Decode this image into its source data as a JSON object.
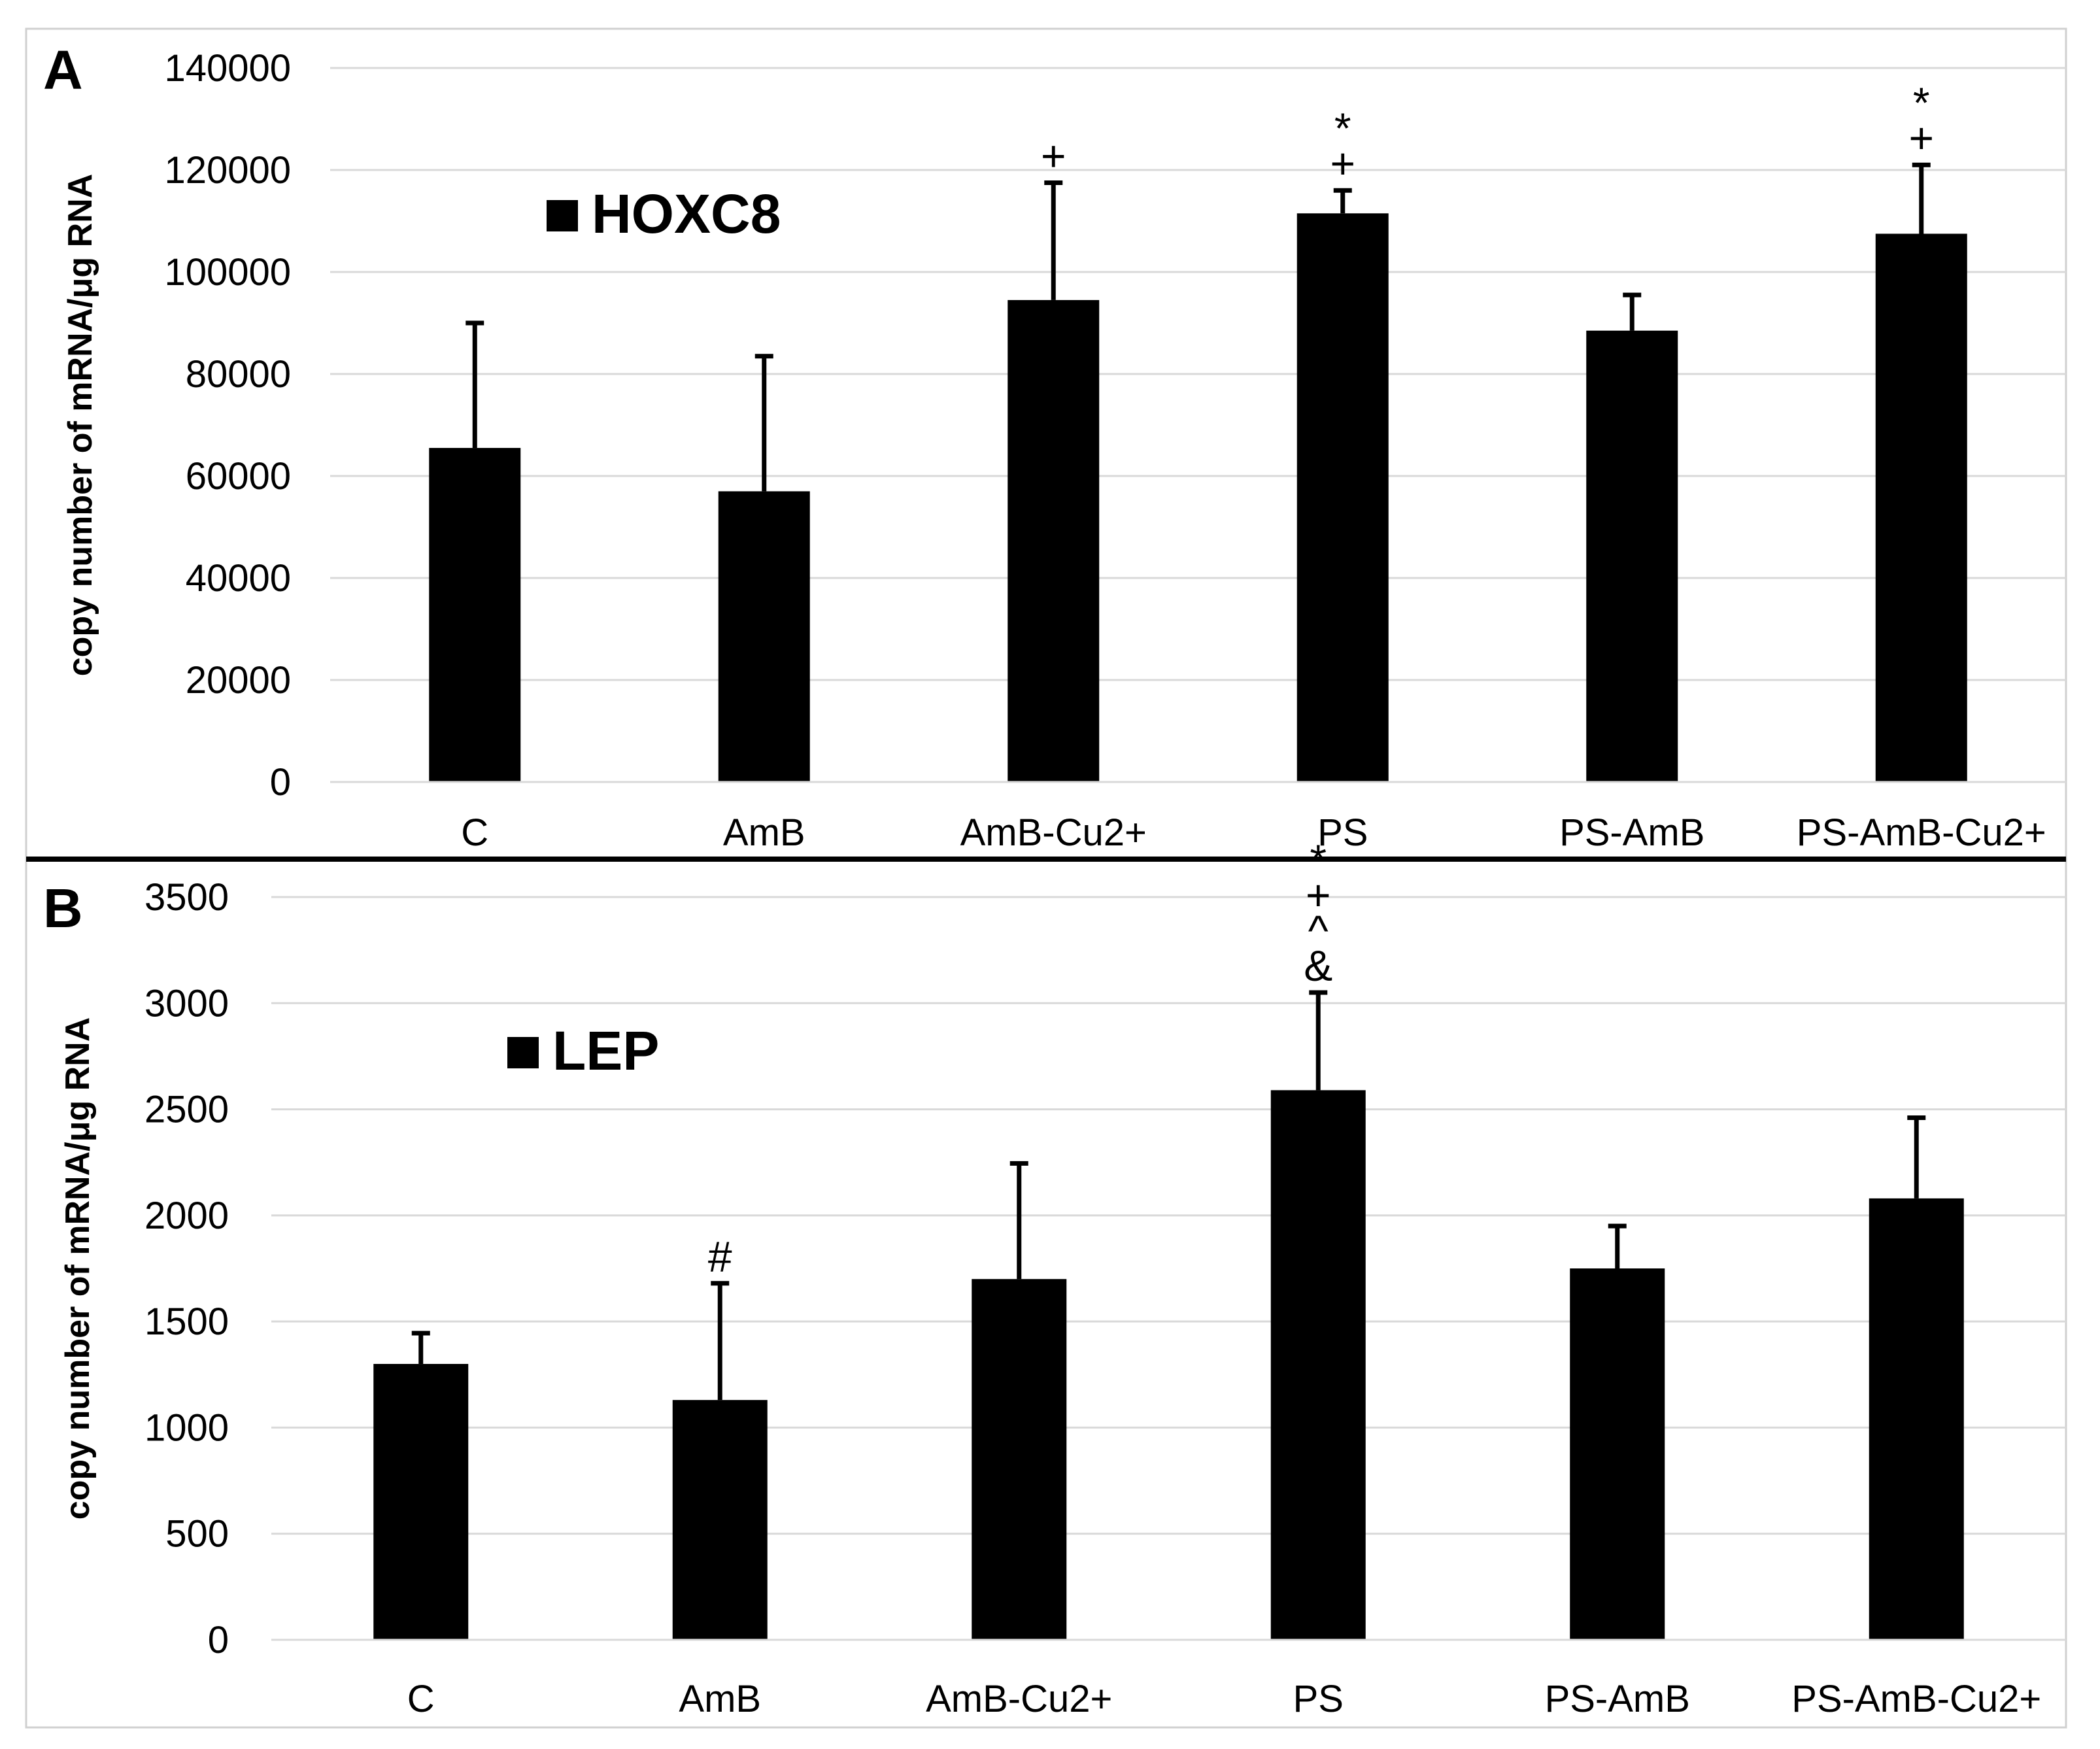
{
  "chart_data": [
    {
      "type": "bar",
      "panel_label": "A",
      "legend": "HOXC8",
      "legend_color": "#000000",
      "legend_placement": "top-left",
      "ylabel": "copy number of mRNA/μg RNA",
      "xlabel": "",
      "categories": [
        "C",
        "AmB",
        "AmB-Cu2+",
        "PS",
        "PS-AmB",
        "PS-AmB-Cu2+"
      ],
      "values": [
        65500,
        57000,
        94500,
        111500,
        88500,
        107500
      ],
      "errors": [
        24500,
        26500,
        23000,
        4500,
        7000,
        13500
      ],
      "annotations": [
        "",
        "",
        "+",
        "*\n+",
        "",
        "*\n+"
      ],
      "ylim": [
        0,
        140000
      ],
      "yticks": [
        0,
        20000,
        40000,
        60000,
        80000,
        100000,
        120000,
        140000
      ],
      "ytick_labels": [
        "0",
        "20000",
        "40000",
        "60000",
        "80000",
        "100000",
        "120000",
        "140000"
      ],
      "grid": true
    },
    {
      "type": "bar",
      "panel_label": "B",
      "legend": "LEP",
      "legend_color": "#000000",
      "legend_placement": "top-left",
      "ylabel": "copy number of mRNA/μg RNA",
      "xlabel": "",
      "categories": [
        "C",
        "AmB",
        "AmB-Cu2+",
        "PS",
        "PS-AmB",
        "PS-AmB-Cu2+"
      ],
      "values": [
        1300,
        1130,
        1700,
        2590,
        1750,
        2080
      ],
      "errors": [
        145,
        550,
        545,
        460,
        200,
        380
      ],
      "annotations": [
        "",
        "#",
        "",
        "*\n+\n^\n&",
        "",
        ""
      ],
      "ylim": [
        0,
        3500
      ],
      "yticks": [
        0,
        500,
        1000,
        1500,
        2000,
        2500,
        3000,
        3500
      ],
      "ytick_labels": [
        "0",
        "500",
        "1000",
        "1500",
        "2000",
        "2500",
        "3000",
        "3500"
      ],
      "grid": true
    }
  ]
}
